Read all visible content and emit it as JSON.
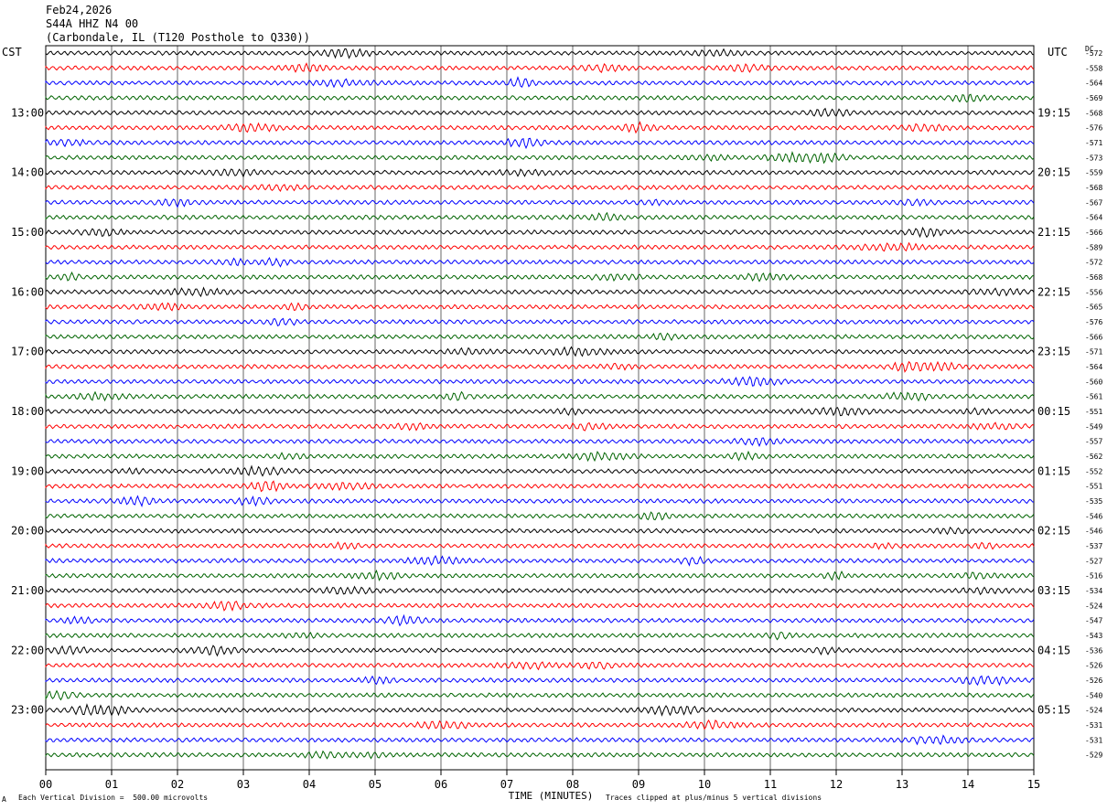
{
  "header": {
    "date": "Feb24,2026",
    "station": "S44A HHZ N4 00",
    "location": "(Carbondale, IL (T120 Posthole to Q330))"
  },
  "labels": {
    "left_tz": "CST",
    "right_tz": "UTC",
    "dc": "DC"
  },
  "footer": {
    "scale": "Each Vertical Division =  500.00 microvolts",
    "clip": "Traces clipped at plus/minus 5 vertical divisions",
    "mark": "A"
  },
  "chart_data": {
    "type": "line",
    "title": "",
    "xlabel": "TIME (MINUTES)",
    "xlim": [
      0,
      15
    ],
    "x_ticks": [
      "00",
      "01",
      "02",
      "03",
      "04",
      "05",
      "06",
      "07",
      "08",
      "09",
      "10",
      "11",
      "12",
      "13",
      "14",
      "15"
    ],
    "left_hour_labels": [
      "13:00",
      "14:00",
      "15:00",
      "16:00",
      "17:00",
      "18:00",
      "19:00",
      "20:00",
      "21:00",
      "22:00",
      "23:00"
    ],
    "right_hour_labels": [
      "19:15",
      "20:15",
      "21:15",
      "22:15",
      "23:15",
      "00:15",
      "01:15",
      "02:15",
      "03:15",
      "04:15",
      "05:15"
    ],
    "trace_colors": [
      "#000000",
      "#ff0000",
      "#0000ff",
      "#006400"
    ],
    "dc_offsets": [
      -572,
      -558,
      -564,
      -569,
      -568,
      -576,
      -571,
      -573,
      -559,
      -568,
      -567,
      -564,
      -566,
      -589,
      -572,
      -568,
      -556,
      -565,
      -576,
      -566,
      -571,
      -564,
      -560,
      -561,
      -551,
      -549,
      -557,
      -562,
      -552,
      -551,
      -535,
      -546,
      -546,
      -537,
      -527,
      -516,
      -534,
      -524,
      -547,
      -543,
      -536,
      -526,
      -526,
      -540,
      -524,
      -531,
      -531,
      -529
    ],
    "grid": true
  }
}
